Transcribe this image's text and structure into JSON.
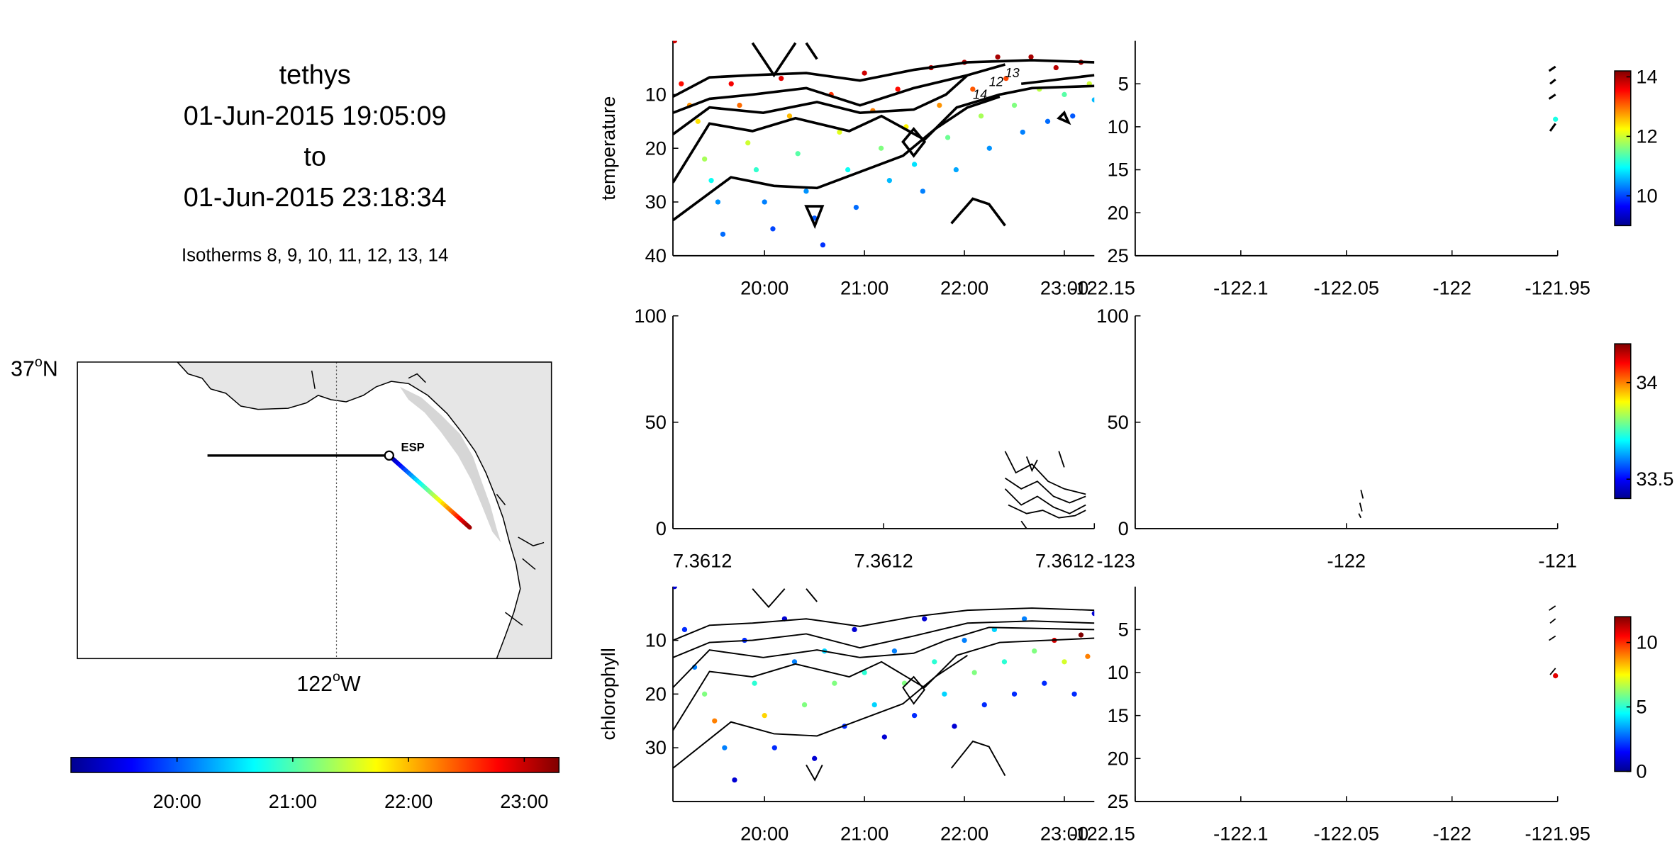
{
  "header": {
    "vehicle": "tethys",
    "start_time": "01-Jun-2015 19:05:09",
    "to": "to",
    "end_time": "01-Jun-2015 23:18:34",
    "isotherms": "Isotherms 8, 9, 10, 11, 12, 13, 14"
  },
  "map": {
    "lat_label": "37",
    "lat_suffix": "N",
    "lon_label": "122",
    "lon_suffix": "W",
    "degree_symbol": "o",
    "marker_label": "ESP",
    "land_color": "#e6e6e6"
  },
  "time_colorbar": {
    "ticks": [
      "20:00",
      "21:00",
      "22:00",
      "23:00"
    ],
    "colormap": "jet"
  },
  "chart_data": [
    {
      "type": "scatter",
      "ylabel": "temperature",
      "y_reversed": true,
      "ylim": [
        0,
        40
      ],
      "yticks": [
        "10",
        "20",
        "30",
        "40"
      ],
      "xticks": [
        "20:00",
        "21:00",
        "22:00",
        "23:00"
      ],
      "contour_labels": [
        "12",
        "13",
        "14"
      ],
      "colorbar": {
        "ticks": [
          "10",
          "12",
          "14"
        ],
        "range": [
          9,
          14.2
        ]
      },
      "points": [
        {
          "t": "19:06",
          "d": 0,
          "v": 13.8
        },
        {
          "t": "19:10",
          "d": 8,
          "v": 13.5
        },
        {
          "t": "19:15",
          "d": 12,
          "v": 12.8
        },
        {
          "t": "19:20",
          "d": 15,
          "v": 12.4
        },
        {
          "t": "19:24",
          "d": 22,
          "v": 11.8
        },
        {
          "t": "19:28",
          "d": 26,
          "v": 11.0
        },
        {
          "t": "19:32",
          "d": 30,
          "v": 10.4
        },
        {
          "t": "19:35",
          "d": 36,
          "v": 10.2
        },
        {
          "t": "19:40",
          "d": 8,
          "v": 13.6
        },
        {
          "t": "19:45",
          "d": 12,
          "v": 13.0
        },
        {
          "t": "19:50",
          "d": 19,
          "v": 12.0
        },
        {
          "t": "19:55",
          "d": 24,
          "v": 11.2
        },
        {
          "t": "20:00",
          "d": 30,
          "v": 10.3
        },
        {
          "t": "20:05",
          "d": 35,
          "v": 10.0
        },
        {
          "t": "20:10",
          "d": 7,
          "v": 13.7
        },
        {
          "t": "20:15",
          "d": 14,
          "v": 12.6
        },
        {
          "t": "20:20",
          "d": 21,
          "v": 11.4
        },
        {
          "t": "20:25",
          "d": 28,
          "v": 10.4
        },
        {
          "t": "20:30",
          "d": 33,
          "v": 10.1
        },
        {
          "t": "20:35",
          "d": 38,
          "v": 9.9
        },
        {
          "t": "20:40",
          "d": 10,
          "v": 13.3
        },
        {
          "t": "20:45",
          "d": 17,
          "v": 12.1
        },
        {
          "t": "20:50",
          "d": 24,
          "v": 11.0
        },
        {
          "t": "20:55",
          "d": 31,
          "v": 10.2
        },
        {
          "t": "21:00",
          "d": 6,
          "v": 13.8
        },
        {
          "t": "21:05",
          "d": 13,
          "v": 12.9
        },
        {
          "t": "21:10",
          "d": 20,
          "v": 11.6
        },
        {
          "t": "21:15",
          "d": 26,
          "v": 10.6
        },
        {
          "t": "21:20",
          "d": 9,
          "v": 13.5
        },
        {
          "t": "21:25",
          "d": 16,
          "v": 12.3
        },
        {
          "t": "21:30",
          "d": 23,
          "v": 10.8
        },
        {
          "t": "21:35",
          "d": 28,
          "v": 10.3
        },
        {
          "t": "21:40",
          "d": 5,
          "v": 13.9
        },
        {
          "t": "21:45",
          "d": 12,
          "v": 12.8
        },
        {
          "t": "21:50",
          "d": 18,
          "v": 11.5
        },
        {
          "t": "21:55",
          "d": 24,
          "v": 10.5
        },
        {
          "t": "22:00",
          "d": 4,
          "v": 13.9
        },
        {
          "t": "22:05",
          "d": 9,
          "v": 13.1
        },
        {
          "t": "22:10",
          "d": 14,
          "v": 11.8
        },
        {
          "t": "22:15",
          "d": 20,
          "v": 10.4
        },
        {
          "t": "22:20",
          "d": 3,
          "v": 14.0
        },
        {
          "t": "22:25",
          "d": 7,
          "v": 13.2
        },
        {
          "t": "22:30",
          "d": 12,
          "v": 11.6
        },
        {
          "t": "22:35",
          "d": 17,
          "v": 10.3
        },
        {
          "t": "22:40",
          "d": 3,
          "v": 14.0
        },
        {
          "t": "22:45",
          "d": 9,
          "v": 11.9
        },
        {
          "t": "22:50",
          "d": 15,
          "v": 10.2
        },
        {
          "t": "22:55",
          "d": 5,
          "v": 13.9
        },
        {
          "t": "23:00",
          "d": 10,
          "v": 11.4
        },
        {
          "t": "23:05",
          "d": 14,
          "v": 10.1
        },
        {
          "t": "23:10",
          "d": 4,
          "v": 14.0
        },
        {
          "t": "23:15",
          "d": 8,
          "v": 12.0
        },
        {
          "t": "23:18",
          "d": 11,
          "v": 10.6
        }
      ]
    },
    {
      "type": "scatter",
      "ylabel": "",
      "ylim": [
        0,
        100
      ],
      "yticks": [
        "0",
        "50",
        "100"
      ],
      "xticks": [
        "7.3612",
        "7.3612",
        "7.3612"
      ],
      "colorbar": {
        "ticks": [
          "33.5",
          "34"
        ],
        "range": [
          33.4,
          34.2
        ]
      }
    },
    {
      "type": "scatter",
      "ylabel": "chlorophyll",
      "y_reversed": true,
      "ylim": [
        0,
        40
      ],
      "yticks": [
        "10",
        "20",
        "30"
      ],
      "xticks": [
        "20:00",
        "21:00",
        "22:00",
        "23:00"
      ],
      "colorbar": {
        "ticks": [
          "0",
          "5",
          "10"
        ],
        "range": [
          0,
          12
        ]
      },
      "points": [
        {
          "t": "19:06",
          "d": 0,
          "v": 1
        },
        {
          "t": "19:12",
          "d": 8,
          "v": 2
        },
        {
          "t": "19:18",
          "d": 15,
          "v": 3
        },
        {
          "t": "19:24",
          "d": 20,
          "v": 6
        },
        {
          "t": "19:30",
          "d": 25,
          "v": 9
        },
        {
          "t": "19:36",
          "d": 30,
          "v": 3
        },
        {
          "t": "19:42",
          "d": 36,
          "v": 1
        },
        {
          "t": "19:48",
          "d": 10,
          "v": 2
        },
        {
          "t": "19:54",
          "d": 18,
          "v": 5
        },
        {
          "t": "20:00",
          "d": 24,
          "v": 8
        },
        {
          "t": "20:06",
          "d": 30,
          "v": 2
        },
        {
          "t": "20:12",
          "d": 6,
          "v": 1
        },
        {
          "t": "20:18",
          "d": 14,
          "v": 3
        },
        {
          "t": "20:24",
          "d": 22,
          "v": 6
        },
        {
          "t": "20:30",
          "d": 32,
          "v": 1
        },
        {
          "t": "20:36",
          "d": 12,
          "v": 4
        },
        {
          "t": "20:42",
          "d": 18,
          "v": 6
        },
        {
          "t": "20:48",
          "d": 26,
          "v": 2
        },
        {
          "t": "20:54",
          "d": 8,
          "v": 1
        },
        {
          "t": "21:00",
          "d": 16,
          "v": 5
        },
        {
          "t": "21:06",
          "d": 22,
          "v": 4
        },
        {
          "t": "21:12",
          "d": 28,
          "v": 1
        },
        {
          "t": "21:18",
          "d": 12,
          "v": 3
        },
        {
          "t": "21:24",
          "d": 18,
          "v": 6
        },
        {
          "t": "21:30",
          "d": 24,
          "v": 2
        },
        {
          "t": "21:36",
          "d": 6,
          "v": 1
        },
        {
          "t": "21:42",
          "d": 14,
          "v": 5
        },
        {
          "t": "21:48",
          "d": 20,
          "v": 4
        },
        {
          "t": "21:54",
          "d": 26,
          "v": 1
        },
        {
          "t": "22:00",
          "d": 10,
          "v": 3
        },
        {
          "t": "22:06",
          "d": 16,
          "v": 6
        },
        {
          "t": "22:12",
          "d": 22,
          "v": 2
        },
        {
          "t": "22:18",
          "d": 8,
          "v": 4
        },
        {
          "t": "22:24",
          "d": 14,
          "v": 5
        },
        {
          "t": "22:30",
          "d": 20,
          "v": 2
        },
        {
          "t": "22:36",
          "d": 6,
          "v": 3
        },
        {
          "t": "22:42",
          "d": 12,
          "v": 6
        },
        {
          "t": "22:48",
          "d": 18,
          "v": 2
        },
        {
          "t": "22:54",
          "d": 10,
          "v": 11
        },
        {
          "t": "23:00",
          "d": 14,
          "v": 7
        },
        {
          "t": "23:06",
          "d": 20,
          "v": 2
        },
        {
          "t": "23:10",
          "d": 9,
          "v": 12
        },
        {
          "t": "23:14",
          "d": 13,
          "v": 9
        },
        {
          "t": "23:18",
          "d": 5,
          "v": 1
        }
      ]
    },
    {
      "type": "scatter",
      "ylim": [
        0,
        25
      ],
      "yticks": [
        "5",
        "10",
        "15",
        "20",
        "25"
      ],
      "xticks": [
        "-122.15",
        "-122.1",
        "-122.05",
        "-122",
        "-121.95"
      ]
    },
    {
      "type": "scatter",
      "ylim": [
        0,
        100
      ],
      "yticks": [
        "0",
        "50",
        "100"
      ],
      "xticks": [
        "-123",
        "-122",
        "-121"
      ]
    },
    {
      "type": "scatter",
      "ylim": [
        0,
        25
      ],
      "yticks": [
        "5",
        "10",
        "15",
        "20",
        "25"
      ],
      "xticks": [
        "-122.15",
        "-122.1",
        "-122.05",
        "-122",
        "-121.95"
      ]
    }
  ]
}
